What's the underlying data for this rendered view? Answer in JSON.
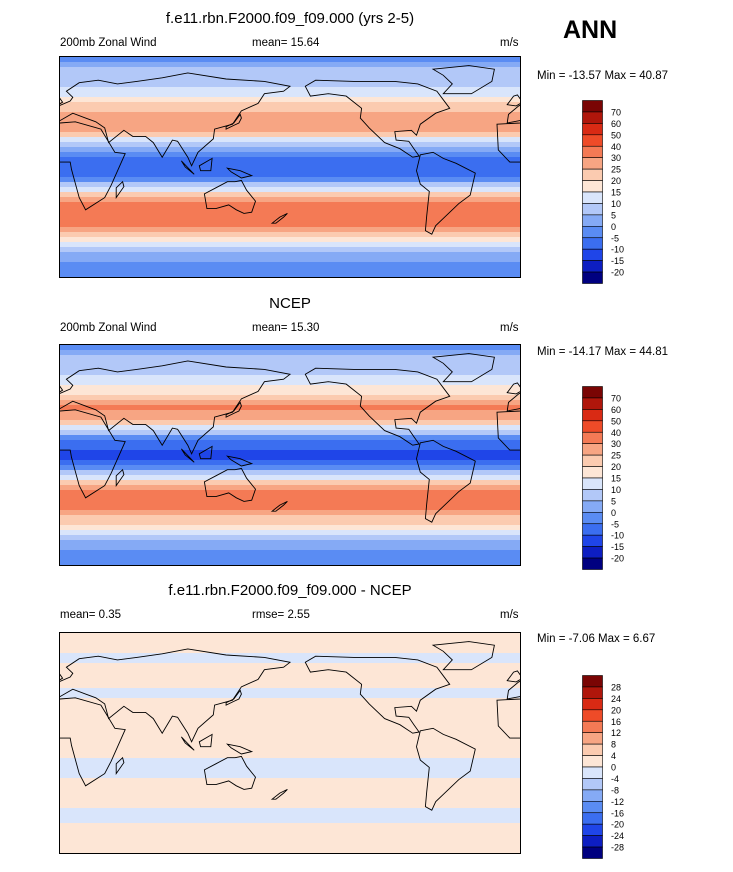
{
  "season": "ANN",
  "chart_data": [
    {
      "type": "heatmap",
      "title": "f.e11.rbn.F2000.f09_f09.000 (yrs 2-5)",
      "left_label": "200mb Zonal Wind",
      "center_label": "mean=  15.64",
      "right_label": "m/s",
      "minmax": "Min = -13.57 Max =  40.87",
      "mean": 15.64,
      "min": -13.57,
      "max": 40.87,
      "colorbar_labels": [
        "70",
        "60",
        "50",
        "40",
        "30",
        "25",
        "20",
        "15",
        "10",
        "5",
        "0",
        "-5",
        "-10",
        "-15",
        "-20"
      ],
      "levels": [
        -20,
        -15,
        -10,
        -5,
        0,
        5,
        10,
        15,
        20,
        25,
        30,
        40,
        50,
        60,
        70
      ],
      "lat_profile": [
        [
          90,
          -2
        ],
        [
          80,
          6
        ],
        [
          70,
          8
        ],
        [
          60,
          14
        ],
        [
          50,
          22
        ],
        [
          40,
          30
        ],
        [
          30,
          26
        ],
        [
          20,
          10
        ],
        [
          10,
          -5
        ],
        [
          0,
          -10
        ],
        [
          -10,
          -2
        ],
        [
          -20,
          18
        ],
        [
          -30,
          33
        ],
        [
          -40,
          35
        ],
        [
          -50,
          28
        ],
        [
          -60,
          16
        ],
        [
          -70,
          4
        ],
        [
          -80,
          -2
        ],
        [
          -90,
          -2
        ]
      ]
    },
    {
      "type": "heatmap",
      "title": "NCEP",
      "left_label": "200mb Zonal Wind",
      "center_label": "mean=  15.30",
      "right_label": "m/s",
      "minmax": "Min = -14.17 Max =  44.81",
      "mean": 15.3,
      "min": -14.17,
      "max": 44.81,
      "colorbar_labels": [
        "70",
        "60",
        "50",
        "40",
        "30",
        "25",
        "20",
        "15",
        "10",
        "5",
        "0",
        "-5",
        "-10",
        "-15",
        "-20"
      ],
      "levels": [
        -20,
        -15,
        -10,
        -5,
        0,
        5,
        10,
        15,
        20,
        25,
        30,
        40,
        50,
        60,
        70
      ],
      "lat_profile": [
        [
          90,
          -2
        ],
        [
          80,
          5
        ],
        [
          70,
          8
        ],
        [
          60,
          13
        ],
        [
          50,
          20
        ],
        [
          40,
          32
        ],
        [
          30,
          28
        ],
        [
          20,
          8
        ],
        [
          10,
          -8
        ],
        [
          0,
          -12
        ],
        [
          -10,
          -4
        ],
        [
          -20,
          18
        ],
        [
          -30,
          32
        ],
        [
          -40,
          33
        ],
        [
          -50,
          26
        ],
        [
          -60,
          15
        ],
        [
          -70,
          4
        ],
        [
          -80,
          -2
        ],
        [
          -90,
          -2
        ]
      ]
    },
    {
      "type": "heatmap",
      "title": "f.e11.rbn.F2000.f09_f09.000 - NCEP",
      "left_label": "mean=   0.35",
      "center_label": "rmse=   2.55",
      "right_label": "m/s",
      "minmax": "Min =  -7.06 Max =   6.67",
      "mean": 0.35,
      "rmse": 2.55,
      "min": -7.06,
      "max": 6.67,
      "colorbar_labels": [
        "28",
        "24",
        "20",
        "16",
        "12",
        "8",
        "4",
        "0",
        "-4",
        "-8",
        "-12",
        "-16",
        "-20",
        "-24",
        "-28"
      ],
      "levels": [
        -28,
        -24,
        -20,
        -16,
        -12,
        -8,
        -4,
        0,
        4,
        8,
        12,
        16,
        20,
        24,
        28
      ],
      "lat_profile": [
        [
          90,
          1
        ],
        [
          80,
          1
        ],
        [
          70,
          -1
        ],
        [
          60,
          2
        ],
        [
          50,
          1
        ],
        [
          40,
          -1
        ],
        [
          30,
          1
        ],
        [
          20,
          2
        ],
        [
          10,
          1
        ],
        [
          0,
          2
        ],
        [
          -10,
          1
        ],
        [
          -20,
          -2
        ],
        [
          -30,
          1
        ],
        [
          -40,
          2
        ],
        [
          -50,
          1
        ],
        [
          -60,
          -2
        ],
        [
          -70,
          1
        ],
        [
          -80,
          1
        ],
        [
          -90,
          1
        ]
      ]
    }
  ],
  "colors": [
    "#000080",
    "#0d1ec2",
    "#1f45e8",
    "#3b6ef0",
    "#5a8cf3",
    "#85aaf5",
    "#b2c8f8",
    "#d9e5fb",
    "#fde6d6",
    "#fbcbb0",
    "#f7a583",
    "#f47a55",
    "#ee4b28",
    "#d92a14",
    "#b0160b",
    "#7a0504"
  ]
}
